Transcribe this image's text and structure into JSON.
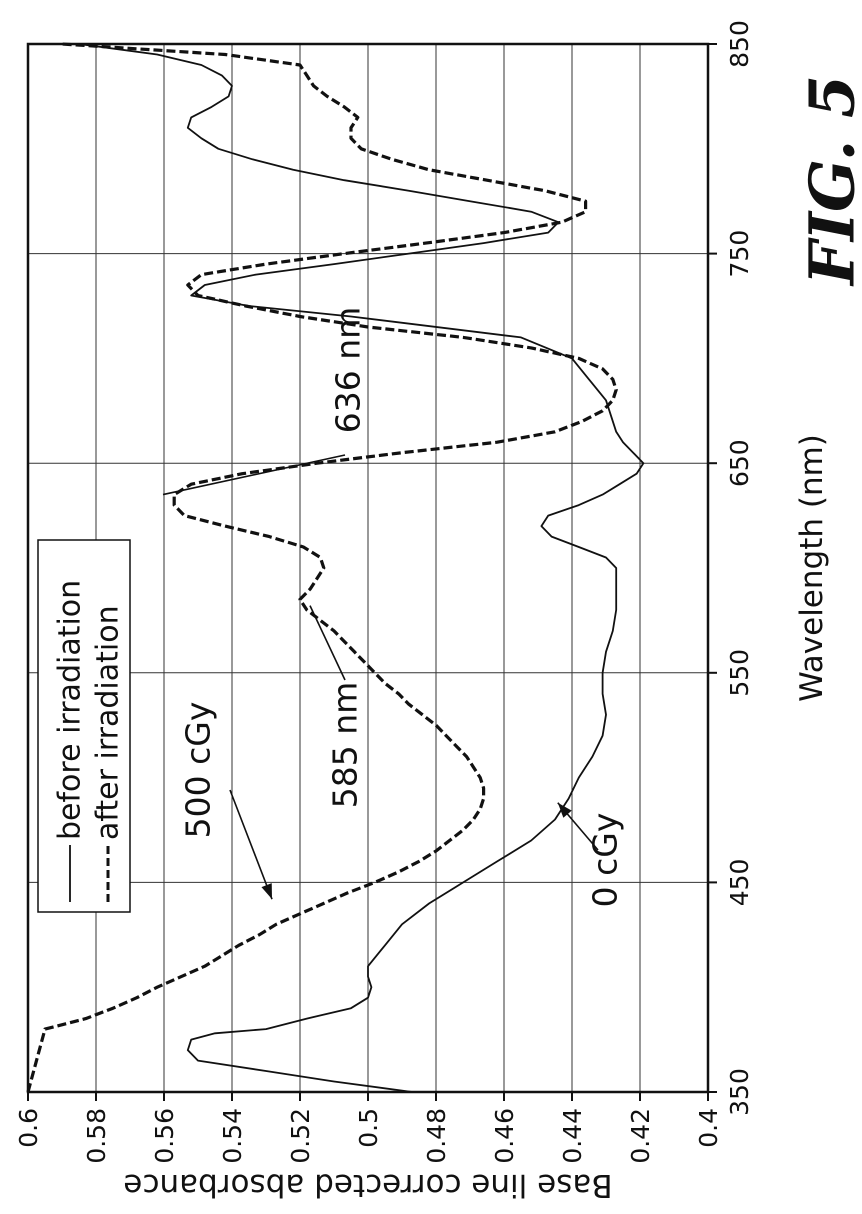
{
  "chart_data": {
    "type": "line",
    "title": "",
    "xlabel": "Wavelength (nm)",
    "ylabel": "Base line corrected absorbance",
    "xlim": [
      350,
      850
    ],
    "ylim": [
      0.4,
      0.6
    ],
    "x_ticks": [
      "350",
      "450",
      "550",
      "650",
      "750",
      "850"
    ],
    "y_ticks": [
      "0.4",
      "0.42",
      "0.44",
      "0.46",
      "0.48",
      "0.5",
      "0.52",
      "0.54",
      "0.56",
      "0.58",
      "0.6"
    ],
    "grid": true,
    "legend_position": "top-left",
    "orientation": "rotated-90-clockwise",
    "series": [
      {
        "name": "before irradiation",
        "style": "solid",
        "x": [
          350,
          355,
          360,
          365,
          370,
          375,
          378,
          380,
          385,
          390,
          395,
          400,
          405,
          410,
          420,
          430,
          440,
          450,
          460,
          470,
          480,
          490,
          500,
          510,
          520,
          530,
          540,
          550,
          560,
          570,
          580,
          590,
          600,
          605,
          610,
          615,
          620,
          625,
          630,
          635,
          640,
          645,
          650,
          655,
          660,
          665,
          670,
          675,
          680,
          690,
          700,
          710,
          720,
          725,
          730,
          735,
          740,
          745,
          750,
          755,
          760,
          765,
          770,
          775,
          780,
          785,
          790,
          795,
          800,
          805,
          810,
          815,
          820,
          825,
          830,
          835,
          840,
          845,
          850
        ],
        "y": [
          0.487,
          0.51,
          0.53,
          0.55,
          0.553,
          0.552,
          0.545,
          0.53,
          0.518,
          0.505,
          0.5,
          0.499,
          0.5,
          0.5,
          0.495,
          0.49,
          0.482,
          0.472,
          0.462,
          0.452,
          0.445,
          0.441,
          0.438,
          0.434,
          0.431,
          0.43,
          0.431,
          0.431,
          0.43,
          0.428,
          0.427,
          0.427,
          0.427,
          0.43,
          0.438,
          0.446,
          0.449,
          0.447,
          0.438,
          0.431,
          0.426,
          0.421,
          0.419,
          0.422,
          0.425,
          0.427,
          0.428,
          0.429,
          0.43,
          0.435,
          0.44,
          0.455,
          0.505,
          0.535,
          0.552,
          0.548,
          0.533,
          0.51,
          0.488,
          0.466,
          0.447,
          0.444,
          0.452,
          0.47,
          0.488,
          0.507,
          0.522,
          0.534,
          0.544,
          0.549,
          0.553,
          0.552,
          0.546,
          0.541,
          0.54,
          0.543,
          0.549,
          0.562,
          0.585
        ]
      },
      {
        "name": "after irradiation",
        "style": "dashed",
        "x": [
          350,
          380,
          385,
          390,
          395,
          400,
          405,
          410,
          415,
          420,
          425,
          430,
          435,
          440,
          445,
          450,
          455,
          460,
          465,
          470,
          475,
          480,
          485,
          490,
          495,
          500,
          505,
          510,
          515,
          520,
          525,
          530,
          535,
          540,
          545,
          550,
          555,
          560,
          565,
          570,
          575,
          580,
          585,
          590,
          595,
          600,
          605,
          610,
          615,
          620,
          625,
          630,
          635,
          640,
          645,
          650,
          655,
          660,
          665,
          670,
          675,
          680,
          685,
          690,
          695,
          700,
          705,
          710,
          715,
          720,
          725,
          730,
          735,
          740,
          745,
          750,
          755,
          760,
          765,
          770,
          775,
          780,
          785,
          790,
          795,
          800,
          805,
          810,
          815,
          820,
          825,
          830,
          835,
          840,
          845,
          850
        ],
        "y": [
          0.6,
          0.595,
          0.583,
          0.575,
          0.568,
          0.562,
          0.555,
          0.548,
          0.543,
          0.538,
          0.532,
          0.527,
          0.52,
          0.513,
          0.506,
          0.498,
          0.491,
          0.485,
          0.48,
          0.476,
          0.472,
          0.469,
          0.467,
          0.466,
          0.466,
          0.467,
          0.469,
          0.471,
          0.474,
          0.477,
          0.48,
          0.484,
          0.488,
          0.491,
          0.495,
          0.498,
          0.501,
          0.504,
          0.507,
          0.51,
          0.514,
          0.518,
          0.52,
          0.517,
          0.515,
          0.513,
          0.514,
          0.519,
          0.529,
          0.542,
          0.554,
          0.557,
          0.557,
          0.552,
          0.537,
          0.515,
          0.49,
          0.462,
          0.445,
          0.437,
          0.431,
          0.428,
          0.427,
          0.428,
          0.431,
          0.438,
          0.452,
          0.472,
          0.5,
          0.52,
          0.536,
          0.55,
          0.553,
          0.549,
          0.53,
          0.507,
          0.483,
          0.46,
          0.443,
          0.436,
          0.436,
          0.448,
          0.465,
          0.482,
          0.493,
          0.502,
          0.505,
          0.505,
          0.503,
          0.507,
          0.512,
          0.516,
          0.518,
          0.52,
          0.542,
          0.59
        ]
      }
    ],
    "annotations": [
      {
        "text": "636 nm",
        "x": 636,
        "y": 0.557
      },
      {
        "text": "585 nm",
        "x": 585,
        "y": 0.52
      },
      {
        "text": "500 cGy",
        "x": 442,
        "y": 0.52
      },
      {
        "text": "0 cGy",
        "x": 490,
        "y": 0.441
      }
    ]
  },
  "figure_label": "FIG. 5"
}
